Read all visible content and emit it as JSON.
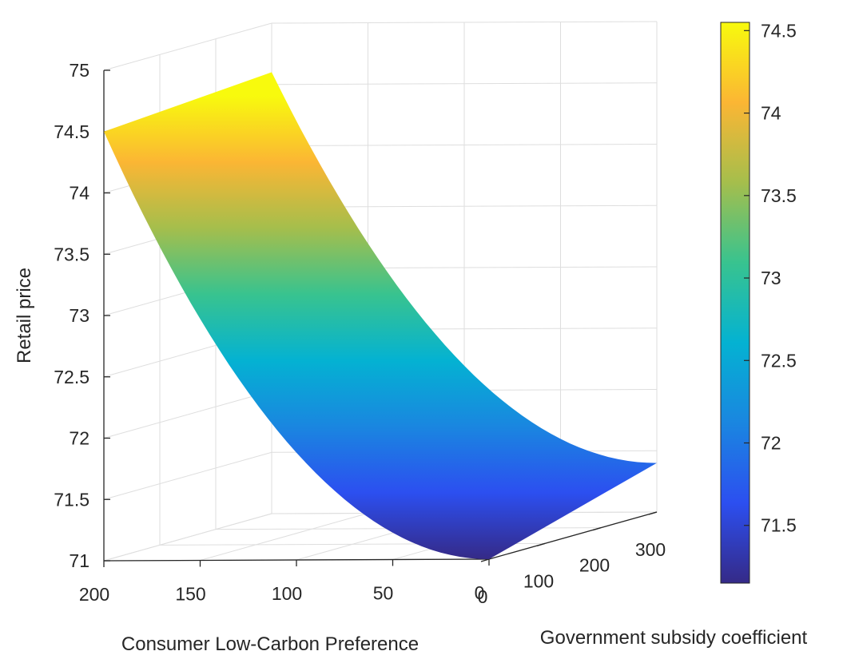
{
  "chart_data": {
    "type": "surface",
    "title": "",
    "xlabel": "Consumer Low-Carbon Preference",
    "ylabel": "Government subsidy coefficient",
    "zlabel": "Retail price",
    "x_ticks": [
      "200",
      "150",
      "100",
      "50",
      "0"
    ],
    "y_ticks": [
      "0",
      "100",
      "200",
      "300"
    ],
    "z_ticks": [
      "75",
      "74.5",
      "74",
      "73.5",
      "73",
      "72.5",
      "72",
      "71.5",
      "71"
    ],
    "xlim": [
      0,
      200
    ],
    "ylim": [
      0,
      300
    ],
    "zlim": [
      71,
      75
    ],
    "grid": true,
    "surface_corners": [
      {
        "x": 200,
        "y": 0,
        "z": 74.5
      },
      {
        "x": 200,
        "y": 300,
        "z": 74.6
      },
      {
        "x": 0,
        "y": 0,
        "z": 71.0
      },
      {
        "x": 0,
        "y": 300,
        "z": 71.4
      }
    ],
    "colorbar": {
      "ticks": [
        "74.5",
        "74",
        "73.5",
        "73",
        "72.5",
        "72",
        "71.5"
      ],
      "range": [
        71.15,
        74.55
      ],
      "colormap": "parula",
      "colormap_stops": [
        "#352a87",
        "#2c4ff0",
        "#1a86e0",
        "#04b2d2",
        "#38c38f",
        "#a5be4c",
        "#fbb634",
        "#f8fa0d"
      ]
    }
  }
}
